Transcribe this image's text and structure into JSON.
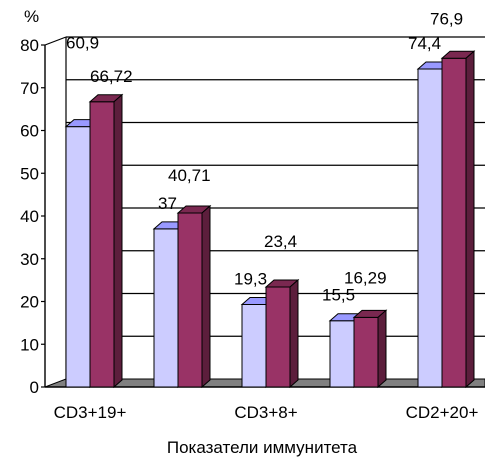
{
  "chart_data": {
    "type": "bar",
    "style": "3d-clustered",
    "ylabel": "%",
    "xlabel": "Показатели иммунитета",
    "ylim": [
      0,
      80
    ],
    "yticks": [
      0,
      10,
      20,
      30,
      40,
      50,
      60,
      70,
      80
    ],
    "grid": true,
    "categories": [
      "CD3+19+",
      "",
      "CD3+8+",
      "",
      "CD2+20+"
    ],
    "category_tick_labels": [
      "CD3+19+",
      "CD3+8+",
      "CD2+20+"
    ],
    "series": [
      {
        "values": [
          60.9,
          37,
          19.3,
          15.5,
          74.4
        ],
        "labels": [
          "60,9",
          "37",
          "19,3",
          "15,5",
          "74,4"
        ],
        "color": "#ccccff",
        "top_color": "#9999ff",
        "side_color": "#8080c0"
      },
      {
        "values": [
          66.72,
          40.71,
          23.4,
          16.29,
          76.9
        ],
        "labels": [
          "66,72",
          "40,71",
          "23,4",
          "16,29",
          "76,9"
        ],
        "color": "#993366",
        "top_color": "#7a2850",
        "side_color": "#5c1e3c"
      }
    ]
  }
}
